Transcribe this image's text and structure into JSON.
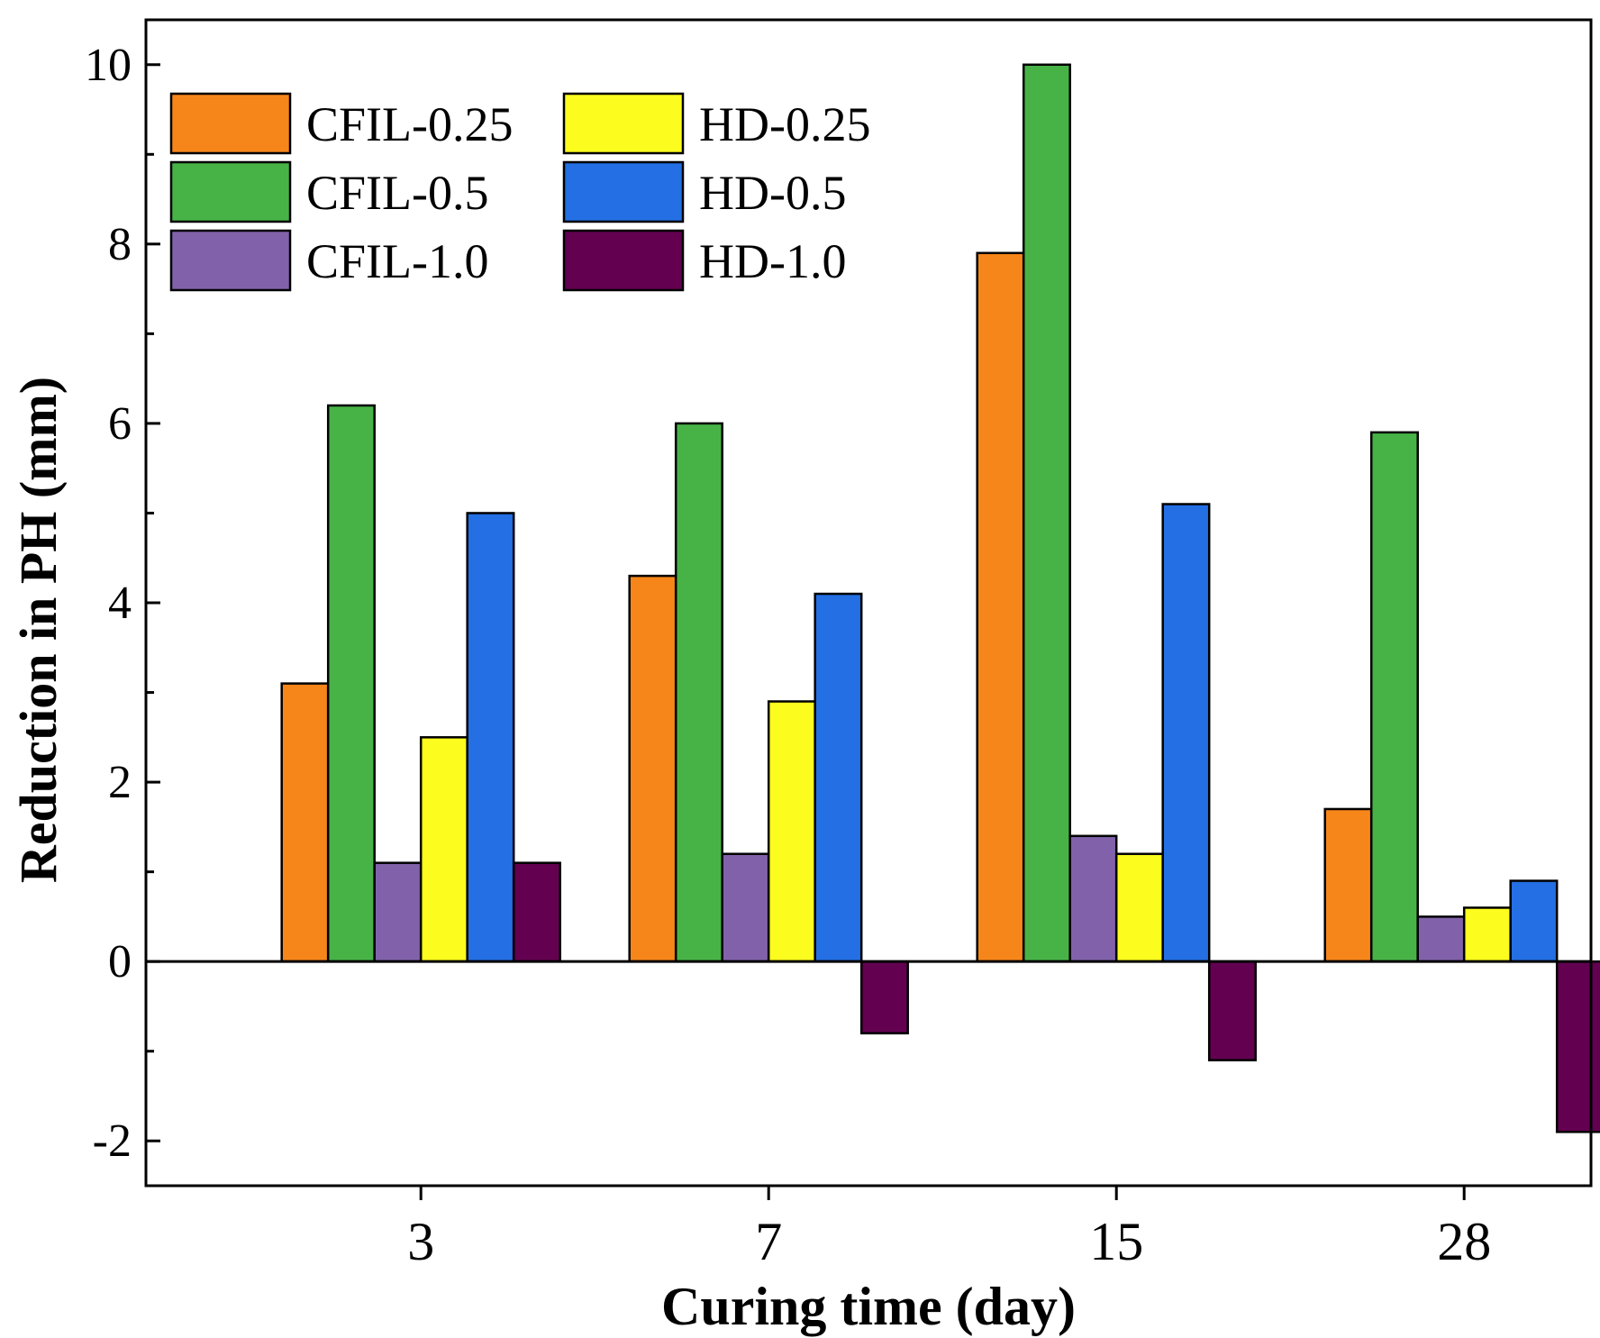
{
  "chart_data": {
    "type": "bar",
    "title": "",
    "xlabel": "Curing time (day)",
    "ylabel": "Reduction in PH (mm)",
    "categories": [
      "3",
      "7",
      "15",
      "28"
    ],
    "ylim": [
      -2.5,
      10.5
    ],
    "yticks": [
      -2,
      0,
      2,
      4,
      6,
      8,
      10
    ],
    "yticks_labels": [
      "-2",
      "0",
      "2",
      "4",
      "6",
      "8",
      "10"
    ],
    "grid": false,
    "legend_position": "top-left",
    "series": [
      {
        "name": "CFIL-0.25",
        "color": "#F7861A",
        "values": [
          3.1,
          4.3,
          7.9,
          1.7
        ]
      },
      {
        "name": "CFIL-0.5",
        "color": "#47B347",
        "values": [
          6.2,
          6.0,
          10.0,
          5.9
        ]
      },
      {
        "name": "CFIL-1.0",
        "color": "#8162AA",
        "values": [
          1.1,
          1.2,
          1.4,
          0.5
        ]
      },
      {
        "name": "HD-0.25",
        "color": "#FCFC1E",
        "values": [
          2.5,
          2.9,
          1.2,
          0.6
        ]
      },
      {
        "name": "HD-0.5",
        "color": "#236FE3",
        "values": [
          5.0,
          4.1,
          5.1,
          0.9
        ]
      },
      {
        "name": "HD-1.0",
        "color": "#630050",
        "values": [
          1.1,
          -0.8,
          -1.1,
          -1.9
        ]
      }
    ]
  }
}
